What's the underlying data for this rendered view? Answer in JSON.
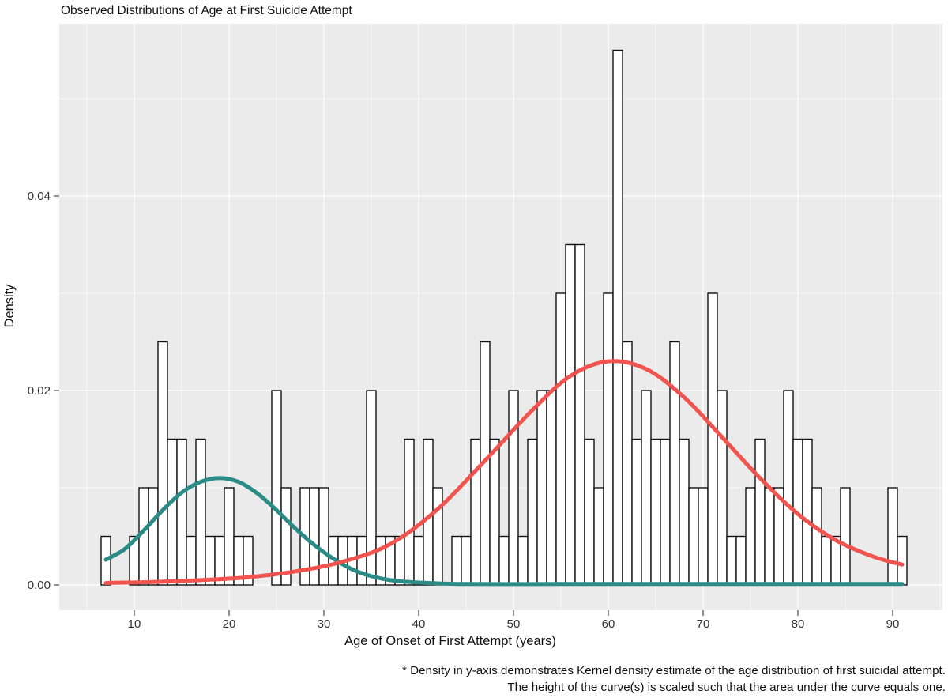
{
  "page": {
    "background": "#ffffff"
  },
  "chart_data": {
    "type": "bar",
    "subtype": "histogram_with_kde_overlays",
    "title": "Observed Distributions of Age at First Suicide Attempt",
    "xlabel": "Age of Onset of First Attempt (years)",
    "ylabel": "Density",
    "xlim": [
      2,
      95.3
    ],
    "ylim": [
      -0.0026,
      0.0577
    ],
    "x_ticks": [
      10,
      20,
      30,
      40,
      50,
      60,
      70,
      80,
      90
    ],
    "y_ticks": [
      {
        "value": 0.0,
        "label": "0.00"
      },
      {
        "value": 0.02,
        "label": "0.02"
      },
      {
        "value": 0.04,
        "label": "0.04"
      }
    ],
    "x_minor_gridlines": [
      5,
      15,
      25,
      35,
      45,
      55,
      65,
      75,
      85,
      95
    ],
    "y_minor_gridlines": [
      0.01,
      0.03,
      0.05
    ],
    "grid": {
      "panel_bg": "#ebebeb",
      "major_color": "#ffffff",
      "minor_color": "#ffffff",
      "legend": "none"
    },
    "histogram": {
      "binwidth": 1,
      "bar_fill": "#ffffff",
      "bar_stroke": "#111111",
      "ages": [
        7,
        8,
        9,
        10,
        11,
        12,
        13,
        14,
        15,
        16,
        17,
        18,
        19,
        20,
        21,
        22,
        23,
        24,
        25,
        26,
        27,
        28,
        29,
        30,
        31,
        32,
        33,
        34,
        35,
        36,
        37,
        38,
        39,
        40,
        41,
        42,
        43,
        44,
        45,
        46,
        47,
        48,
        49,
        50,
        51,
        52,
        53,
        54,
        55,
        56,
        57,
        58,
        59,
        60,
        61,
        62,
        63,
        64,
        65,
        66,
        67,
        68,
        69,
        70,
        71,
        72,
        73,
        74,
        75,
        76,
        77,
        78,
        79,
        80,
        81,
        82,
        83,
        84,
        85,
        86,
        87,
        88,
        89,
        90,
        91
      ],
      "densities": [
        0.005,
        0,
        0,
        0.005,
        0.01,
        0.01,
        0.025,
        0.015,
        0.015,
        0.005,
        0.015,
        0.005,
        0.005,
        0.01,
        0.005,
        0.005,
        0,
        0,
        0.02,
        0.01,
        0,
        0.01,
        0.01,
        0.01,
        0.005,
        0.005,
        0.005,
        0.005,
        0.02,
        0.005,
        0.005,
        0.005,
        0.015,
        0.005,
        0.015,
        0.01,
        0,
        0.005,
        0.005,
        0.015,
        0.025,
        0.015,
        0.005,
        0.02,
        0.005,
        0.015,
        0.02,
        0.02,
        0.03,
        0.035,
        0.035,
        0.015,
        0.01,
        0.03,
        0.055,
        0.025,
        0.015,
        0.02,
        0.015,
        0.015,
        0.025,
        0.015,
        0.01,
        0.01,
        0.03,
        0.02,
        0.005,
        0.005,
        0.01,
        0.015,
        0.01,
        0.01,
        0.02,
        0.015,
        0.015,
        0.01,
        0.005,
        0.005,
        0.01,
        0,
        0,
        0,
        0,
        0.01,
        0.005
      ]
    },
    "density_curves": [
      {
        "name": "early-onset-kde",
        "color": "#2b8c87",
        "stroke_width": 5,
        "points": [
          [
            7,
            0.0026
          ],
          [
            9,
            0.0037
          ],
          [
            11,
            0.0056
          ],
          [
            13,
            0.0077
          ],
          [
            15,
            0.0095
          ],
          [
            17,
            0.0106
          ],
          [
            19,
            0.011
          ],
          [
            21,
            0.0106
          ],
          [
            23,
            0.0094
          ],
          [
            25,
            0.0077
          ],
          [
            27,
            0.0058
          ],
          [
            29,
            0.0041
          ],
          [
            31,
            0.0027
          ],
          [
            33,
            0.0016
          ],
          [
            35,
            0.0009
          ],
          [
            37,
            0.0005
          ],
          [
            39,
            0.0003
          ],
          [
            41,
            0.0002
          ],
          [
            45,
            0.0001
          ],
          [
            55,
            0.0001
          ],
          [
            65,
            0.0001
          ],
          [
            75,
            0.0001
          ],
          [
            85,
            0.0001
          ],
          [
            91,
            0.0001
          ]
        ]
      },
      {
        "name": "late-onset-kde",
        "color": "#f1544f",
        "stroke_width": 5,
        "points": [
          [
            7,
            0.0002
          ],
          [
            12,
            0.0003
          ],
          [
            17,
            0.0005
          ],
          [
            22,
            0.0008
          ],
          [
            27,
            0.0014
          ],
          [
            32,
            0.0024
          ],
          [
            37,
            0.0042
          ],
          [
            42,
            0.0078
          ],
          [
            47,
            0.0128
          ],
          [
            52,
            0.018
          ],
          [
            56,
            0.0215
          ],
          [
            60,
            0.023
          ],
          [
            64,
            0.0222
          ],
          [
            68,
            0.0193
          ],
          [
            72,
            0.0152
          ],
          [
            76,
            0.011
          ],
          [
            80,
            0.0073
          ],
          [
            84,
            0.0046
          ],
          [
            88,
            0.0029
          ],
          [
            91,
            0.0021
          ]
        ]
      }
    ],
    "footnote_lines": [
      "* Density in y-axis demonstrates Kernel density estimate of the age distribution of first suicidal attempt.",
      "The height of the curve(s) is scaled such that the area under the curve equals one."
    ]
  }
}
